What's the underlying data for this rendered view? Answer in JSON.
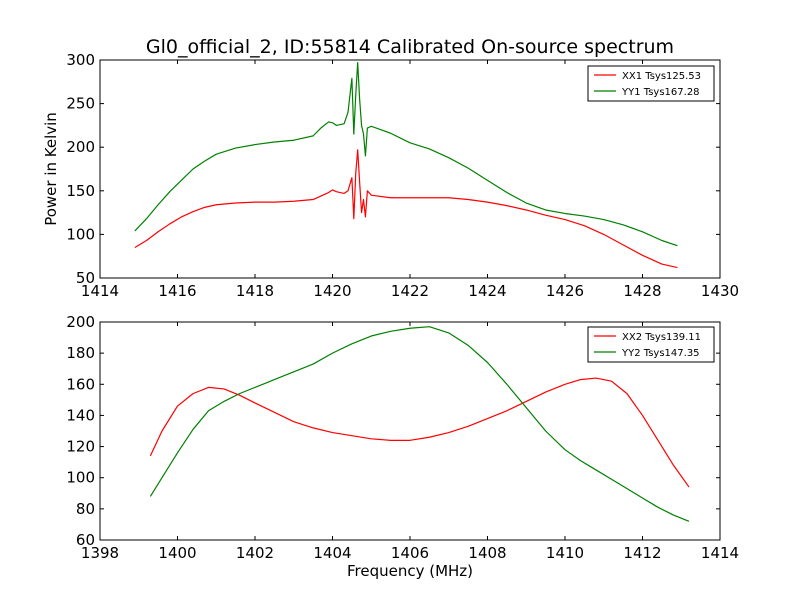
{
  "title": "Gl0_official_2, ID:55814 Calibrated On-source spectrum",
  "chart_data": [
    {
      "type": "line",
      "ylabel": "Power in Kelvin",
      "xlabel": "",
      "xlim": [
        1414,
        1430
      ],
      "ylim": [
        50,
        300
      ],
      "xticks": [
        "1414",
        "1416",
        "1418",
        "1420",
        "1422",
        "1424",
        "1426",
        "1428",
        "1430"
      ],
      "yticks": [
        "50",
        "100",
        "150",
        "200",
        "250",
        "300"
      ],
      "legend_position": "top-right",
      "series": [
        {
          "name": "XX1 Tsys125.53",
          "color": "#ff0000",
          "x": [
            1414.9,
            1415.2,
            1415.5,
            1415.8,
            1416.1,
            1416.4,
            1416.7,
            1417.0,
            1417.5,
            1418.0,
            1418.5,
            1419.0,
            1419.5,
            1419.7,
            1419.9,
            1420.0,
            1420.1,
            1420.3,
            1420.4,
            1420.5,
            1420.55,
            1420.6,
            1420.65,
            1420.7,
            1420.75,
            1420.8,
            1420.85,
            1420.9,
            1421.0,
            1421.5,
            1422.0,
            1422.5,
            1423.0,
            1423.5,
            1424.0,
            1424.5,
            1425.0,
            1425.5,
            1426.0,
            1426.5,
            1427.0,
            1427.5,
            1428.0,
            1428.5,
            1428.9
          ],
          "y": [
            85,
            93,
            103,
            112,
            120,
            126,
            131,
            134,
            136,
            137,
            137,
            138,
            140,
            144,
            148,
            151,
            149,
            147,
            150,
            165,
            118,
            170,
            197,
            160,
            125,
            140,
            120,
            150,
            145,
            142,
            142,
            142,
            142,
            140,
            137,
            133,
            128,
            122,
            117,
            110,
            100,
            88,
            76,
            66,
            62
          ]
        },
        {
          "name": "YY1 Tsys167.28",
          "color": "#008000",
          "x": [
            1414.9,
            1415.2,
            1415.5,
            1415.8,
            1416.1,
            1416.4,
            1416.7,
            1417.0,
            1417.5,
            1418.0,
            1418.5,
            1419.0,
            1419.5,
            1419.7,
            1419.9,
            1420.0,
            1420.1,
            1420.3,
            1420.4,
            1420.5,
            1420.55,
            1420.6,
            1420.65,
            1420.7,
            1420.75,
            1420.8,
            1420.85,
            1420.9,
            1421.0,
            1421.5,
            1422.0,
            1422.5,
            1423.0,
            1423.5,
            1424.0,
            1424.5,
            1425.0,
            1425.5,
            1426.0,
            1426.5,
            1427.0,
            1427.5,
            1428.0,
            1428.5,
            1428.9
          ],
          "y": [
            104,
            118,
            134,
            149,
            162,
            175,
            184,
            192,
            199,
            203,
            206,
            208,
            213,
            222,
            229,
            228,
            225,
            227,
            240,
            279,
            215,
            260,
            297,
            255,
            225,
            215,
            190,
            222,
            224,
            216,
            205,
            198,
            188,
            176,
            162,
            148,
            136,
            128,
            124,
            121,
            117,
            111,
            103,
            93,
            87
          ]
        }
      ]
    },
    {
      "type": "line",
      "xlabel": "Frequency (MHz)",
      "ylabel": "",
      "xlim": [
        1398,
        1414
      ],
      "ylim": [
        60,
        200
      ],
      "xticks": [
        "1398",
        "1400",
        "1402",
        "1404",
        "1406",
        "1408",
        "1410",
        "1412",
        "1414"
      ],
      "yticks": [
        "60",
        "80",
        "100",
        "120",
        "140",
        "160",
        "180",
        "200"
      ],
      "legend_position": "top-right",
      "series": [
        {
          "name": "XX2 Tsys139.11",
          "color": "#ff0000",
          "x": [
            1399.3,
            1399.6,
            1400.0,
            1400.4,
            1400.8,
            1401.2,
            1401.6,
            1402.0,
            1402.5,
            1403.0,
            1403.5,
            1404.0,
            1404.5,
            1405.0,
            1405.5,
            1406.0,
            1406.5,
            1407.0,
            1407.5,
            1408.0,
            1408.5,
            1409.0,
            1409.5,
            1410.0,
            1410.4,
            1410.8,
            1411.2,
            1411.6,
            1412.0,
            1412.4,
            1412.8,
            1413.2
          ],
          "y": [
            114,
            130,
            146,
            154,
            158,
            157,
            153,
            148,
            142,
            136,
            132,
            129,
            127,
            125,
            124,
            124,
            126,
            129,
            133,
            138,
            143,
            149,
            155,
            160,
            163,
            164,
            162,
            154,
            140,
            124,
            108,
            94
          ]
        },
        {
          "name": "YY2 Tsys147.35",
          "color": "#008000",
          "x": [
            1399.3,
            1399.6,
            1400.0,
            1400.4,
            1400.8,
            1401.2,
            1401.6,
            1402.0,
            1402.5,
            1403.0,
            1403.5,
            1404.0,
            1404.5,
            1405.0,
            1405.5,
            1406.0,
            1406.5,
            1407.0,
            1407.5,
            1408.0,
            1408.5,
            1409.0,
            1409.5,
            1410.0,
            1410.4,
            1410.8,
            1411.2,
            1411.6,
            1412.0,
            1412.4,
            1412.8,
            1413.2
          ],
          "y": [
            88,
            100,
            116,
            131,
            143,
            149,
            154,
            158,
            163,
            168,
            173,
            180,
            186,
            191,
            194,
            196,
            197,
            193,
            185,
            174,
            160,
            145,
            130,
            118,
            111,
            105,
            99,
            93,
            87,
            81,
            76,
            72
          ]
        }
      ]
    }
  ]
}
